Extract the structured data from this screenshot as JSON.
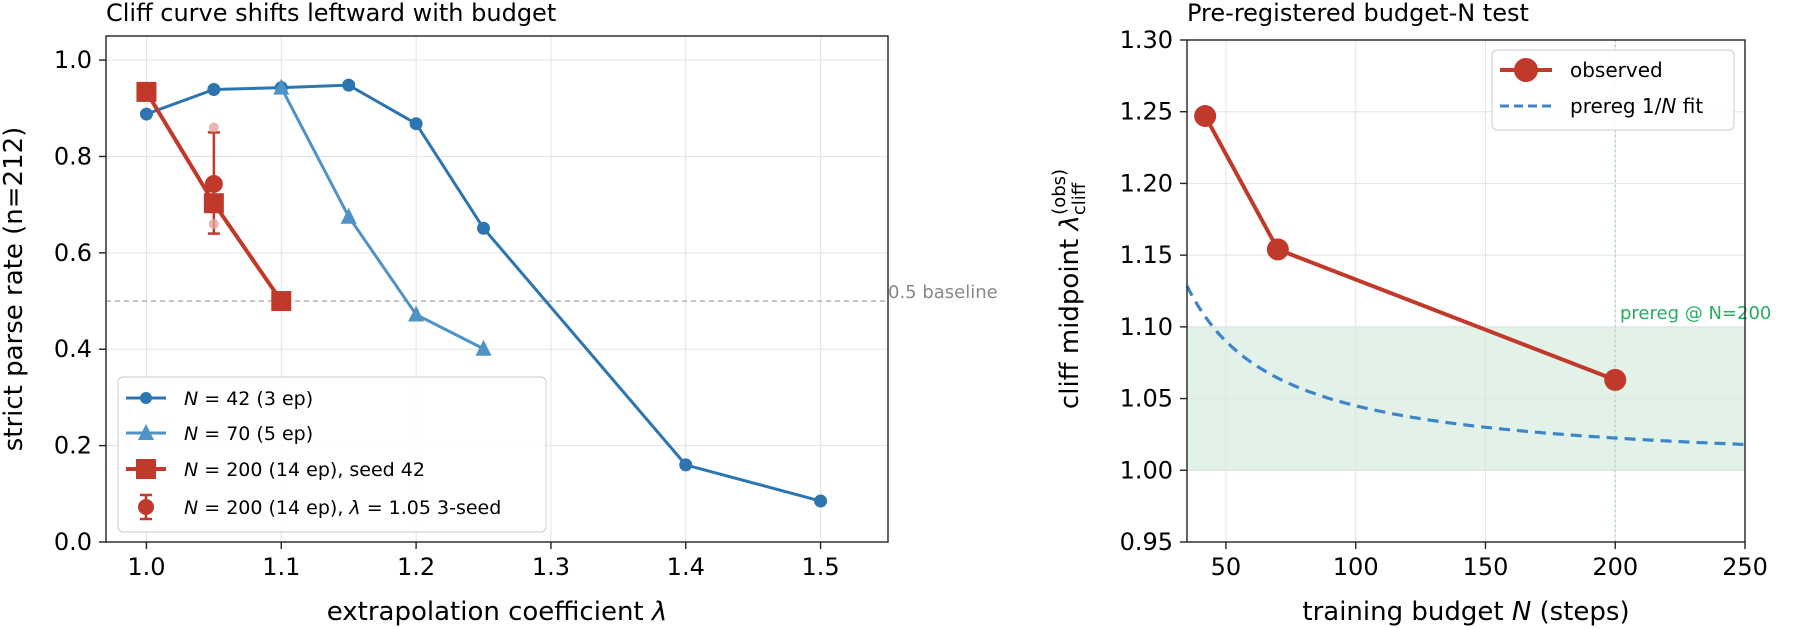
{
  "chart_data": [
    {
      "type": "line",
      "title": "Cliff curve shifts leftward with budget",
      "xlabel": "extrapolation coefficient λ",
      "ylabel": "strict parse rate (n=212)",
      "xlim": [
        0.97,
        1.55
      ],
      "ylim": [
        0.0,
        1.05
      ],
      "xticks": [
        "1.0",
        "1.1",
        "1.2",
        "1.3",
        "1.4",
        "1.5"
      ],
      "yticks": [
        "0.0",
        "0.2",
        "0.4",
        "0.6",
        "0.8",
        "1.0"
      ],
      "grid": true,
      "legend_position": "lower-left",
      "baseline": {
        "y": 0.5,
        "label": "0.5 baseline"
      },
      "series": [
        {
          "name": "N = 42 (3 ep)",
          "color": "#2c75b0",
          "marker": "circle",
          "x": [
            1.0,
            1.05,
            1.1,
            1.15,
            1.2,
            1.25,
            1.4,
            1.5
          ],
          "y": [
            0.888,
            0.939,
            0.943,
            0.948,
            0.868,
            0.651,
            0.16,
            0.085
          ]
        },
        {
          "name": "N = 70 (5 ep)",
          "color": "#4f93c4",
          "marker": "triangle",
          "x": [
            1.1,
            1.15,
            1.2,
            1.25
          ],
          "y": [
            0.943,
            0.675,
            0.472,
            0.401
          ]
        },
        {
          "name": "N = 200 (14 ep), seed 42",
          "color": "#c0392b",
          "marker": "square",
          "x": [
            1.0,
            1.05,
            1.1
          ],
          "y": [
            0.934,
            0.703,
            0.5
          ]
        },
        {
          "name": "N = 200 (14 ep), λ = 1.05 3-seed",
          "color": "#c0392b",
          "marker": "errorbar",
          "x": [
            1.05
          ],
          "y": [
            0.743
          ],
          "yerr_low": [
            0.64
          ],
          "yerr_high": [
            0.85
          ],
          "seed_points": [
            0.66,
            0.743,
            0.86
          ]
        }
      ]
    },
    {
      "type": "line",
      "title": "Pre-registered budget-N test",
      "xlabel": "training budget N (steps)",
      "ylabel": "cliff midpoint λcliff(obs)",
      "xlim": [
        35,
        250
      ],
      "ylim": [
        0.95,
        1.3
      ],
      "xticks": [
        "50",
        "100",
        "150",
        "200",
        "250"
      ],
      "yticks": [
        "0.95",
        "1.00",
        "1.05",
        "1.10",
        "1.15",
        "1.20",
        "1.25",
        "1.30"
      ],
      "grid": true,
      "legend_position": "top-right",
      "band": {
        "y0": 1.0,
        "y1": 1.1,
        "color": "#d5ecdf"
      },
      "vline": {
        "x": 200,
        "label": "prereg @ N=200",
        "color": "#27ae60"
      },
      "series": [
        {
          "name": "observed",
          "color": "#c0392b",
          "marker": "circle",
          "x": [
            42,
            70,
            200
          ],
          "y": [
            1.247,
            1.154,
            1.063
          ]
        },
        {
          "name": "prereg 1/N fit",
          "color": "#3d85c6",
          "style": "dashed",
          "function": "a + b/N",
          "a": 1.0,
          "b": 4.5
        }
      ]
    }
  ]
}
